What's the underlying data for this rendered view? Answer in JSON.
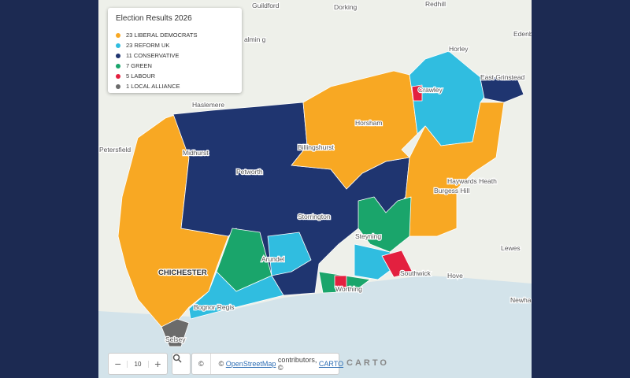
{
  "legend": {
    "title": "Election Results 2026",
    "entries": [
      {
        "label": "23 LIBERAL DEMOCRATS",
        "color": "#f8a823"
      },
      {
        "label": "23 REFORM UK",
        "color": "#30bde0"
      },
      {
        "label": "11 CONSERVATIVE",
        "color": "#1f3570"
      },
      {
        "label": "7 GREEN",
        "color": "#1aa56b"
      },
      {
        "label": "5 LABOUR",
        "color": "#e3203f"
      },
      {
        "label": "1 LOCAL ALLIANCE",
        "color": "#6b6b6b"
      }
    ]
  },
  "places": [
    "Guildford",
    "Dorking",
    "Redhill",
    "Edenbr",
    "Horley",
    "East Grinstead",
    "Haslemere",
    "Crawley",
    "Horsham",
    "Billingshurst",
    "Petersfield",
    "Midhurst",
    "Petworth",
    "Haywards Heath",
    "Burgess Hill",
    "Storrington",
    "Steyning",
    "Arundel",
    "CHICHESTER",
    "Lewes",
    "Hove",
    "Southwick",
    "Worthing",
    "Bognor Regis",
    "Selsey",
    "Newha",
    "almin g"
  ],
  "controls": {
    "zoom_out": "−",
    "zoom_level": "10",
    "zoom_in": "+",
    "info": "©"
  },
  "attribution": {
    "prefix": "©",
    "osm": "OpenStreetMap",
    "middle": "contributors, ©",
    "carto": "CARTO"
  },
  "logo": "CARTO"
}
